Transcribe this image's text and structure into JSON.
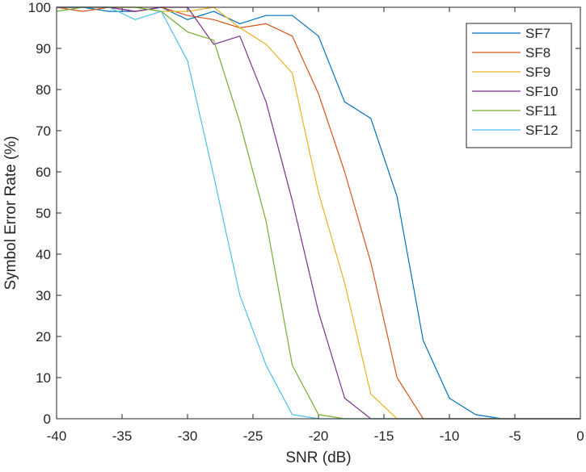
{
  "chart_data": {
    "type": "line",
    "xlabel": "SNR (dB)",
    "ylabel": "Symbol Error Rate (%)",
    "xlim": [
      -40,
      0
    ],
    "ylim": [
      0,
      100
    ],
    "xticks": [
      -40,
      -35,
      -30,
      -25,
      -20,
      -15,
      -10,
      -5,
      0
    ],
    "yticks": [
      0,
      10,
      20,
      30,
      40,
      50,
      60,
      70,
      80,
      90,
      100
    ],
    "grid": false,
    "legend_position": "top-right",
    "x": [
      -40,
      -38,
      -36,
      -34,
      -32,
      -30,
      -28,
      -26,
      -24,
      -22,
      -20,
      -18,
      -16,
      -14,
      -12,
      -10,
      -8,
      -6,
      -4,
      -2,
      0
    ],
    "series": [
      {
        "name": "SF7",
        "color": "#0072BD",
        "values": [
          100,
          100,
          99,
          99,
          100,
          97,
          99,
          96,
          98,
          98,
          93,
          77,
          73,
          54,
          19,
          5,
          1,
          0,
          0,
          0,
          0
        ]
      },
      {
        "name": "SF8",
        "color": "#D95319",
        "values": [
          100,
          99,
          100,
          99,
          100,
          98,
          97,
          95,
          96,
          93,
          79,
          60,
          38,
          10,
          0,
          0,
          0,
          0,
          0,
          0,
          0
        ]
      },
      {
        "name": "SF9",
        "color": "#EDB120",
        "values": [
          100,
          100,
          100,
          100,
          99,
          99,
          100,
          95,
          91,
          84,
          55,
          33,
          6,
          0,
          0,
          0,
          0,
          0,
          0,
          0,
          0
        ]
      },
      {
        "name": "SF10",
        "color": "#7E2F8E",
        "values": [
          100,
          100,
          100,
          99,
          100,
          100,
          91,
          93,
          77,
          53,
          26,
          5,
          0,
          0,
          0,
          0,
          0,
          0,
          0,
          0,
          0
        ]
      },
      {
        "name": "SF11",
        "color": "#77AC30",
        "values": [
          99,
          100,
          100,
          100,
          99,
          94,
          92,
          72,
          48,
          13,
          1,
          0,
          0,
          0,
          0,
          0,
          0,
          0,
          0,
          0,
          0
        ]
      },
      {
        "name": "SF12",
        "color": "#4DBEEE",
        "values": [
          100,
          100,
          100,
          97,
          99,
          87,
          59,
          30,
          13,
          1,
          0,
          0,
          0,
          0,
          0,
          0,
          0,
          0,
          0,
          0,
          0
        ]
      }
    ]
  }
}
